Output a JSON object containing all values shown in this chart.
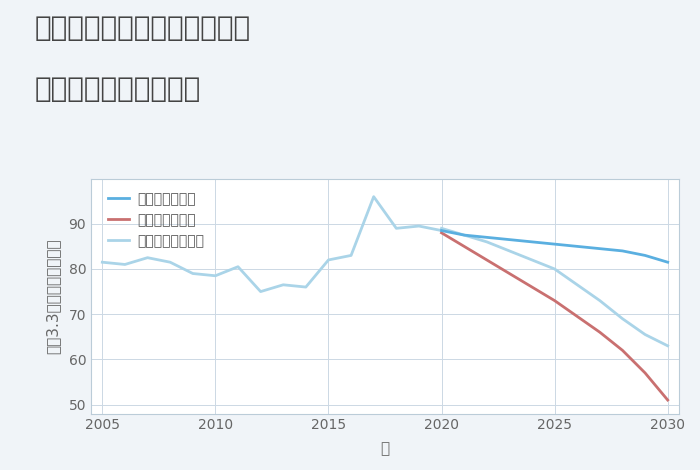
{
  "title_line1": "兵庫県たつの市御津町黒崎の",
  "title_line2": "中古戸建ての価格推移",
  "xlabel": "年",
  "ylabel": "坪（3.3㎡）単価（万円）",
  "bg_color": "#f0f4f8",
  "plot_bg_color": "#ffffff",
  "historical_years": [
    2005,
    2006,
    2007,
    2008,
    2009,
    2010,
    2011,
    2012,
    2013,
    2014,
    2015,
    2016,
    2017,
    2018,
    2019,
    2020
  ],
  "historical_values": [
    81.5,
    81.0,
    82.5,
    81.5,
    79.0,
    78.5,
    80.5,
    75.0,
    76.5,
    76.0,
    82.0,
    83.0,
    96.0,
    89.0,
    89.5,
    88.5
  ],
  "forecast_years": [
    2020,
    2021,
    2022,
    2023,
    2024,
    2025,
    2026,
    2027,
    2028,
    2029,
    2030
  ],
  "good_values": [
    88.5,
    87.5,
    87.0,
    86.5,
    86.0,
    85.5,
    85.0,
    84.5,
    84.0,
    83.0,
    81.5
  ],
  "bad_values": [
    88.0,
    85.0,
    82.0,
    79.0,
    76.0,
    73.0,
    69.5,
    66.0,
    62.0,
    57.0,
    51.0
  ],
  "normal_values": [
    89.0,
    87.5,
    86.0,
    84.0,
    82.0,
    80.0,
    76.5,
    73.0,
    69.0,
    65.5,
    63.0
  ],
  "good_color": "#5aafe0",
  "bad_color": "#c97070",
  "normal_color": "#aad4e8",
  "legend_labels": [
    "グッドシナリオ",
    "バッドシナリオ",
    "ノーマルシナリオ"
  ],
  "ylim": [
    48,
    100
  ],
  "yticks": [
    50,
    60,
    70,
    80,
    90
  ],
  "xlim": [
    2004.5,
    2030.5
  ],
  "xticks": [
    2005,
    2010,
    2015,
    2020,
    2025,
    2030
  ],
  "title_fontsize": 20,
  "axis_label_fontsize": 11,
  "tick_fontsize": 10,
  "legend_fontsize": 10,
  "line_width": 2.0
}
